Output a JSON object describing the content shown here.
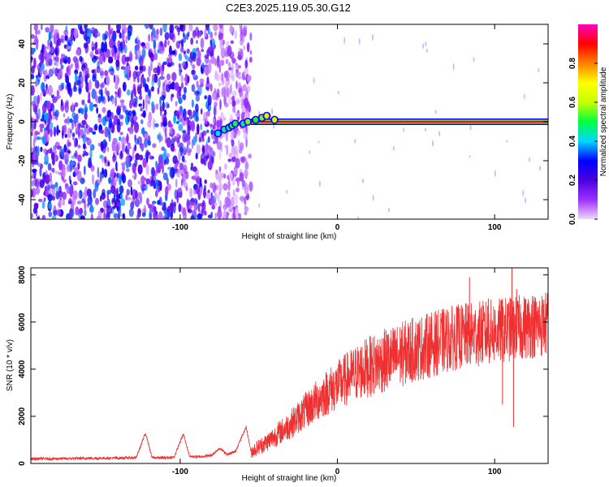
{
  "figure_title": "C2E3.2025.119.05.30.G12",
  "chart_data": [
    {
      "type": "heatmap",
      "panel": "top",
      "xlabel": "Height of straight line (km)",
      "ylabel": "Frequency (Hz)",
      "xlim": [
        -195,
        134
      ],
      "ylim": [
        -50,
        50
      ],
      "xticks": [
        -100,
        0,
        100
      ],
      "yticks": [
        -40,
        -20,
        0,
        20,
        40
      ],
      "x_tick_labels": [
        "-100",
        "0",
        "100"
      ],
      "y_tick_labels": [
        "-40",
        "-20",
        "0",
        "20",
        "40"
      ],
      "colorbar": {
        "label": "Normalized spectral amplitude",
        "range": [
          0,
          1
        ],
        "ticks": [
          0,
          0.2,
          0.4,
          0.6,
          0.8
        ],
        "tick_labels": [
          "0.0",
          "0.2",
          "0.4",
          "0.6",
          "0.8"
        ],
        "colormap": [
          "#f0d8ff",
          "#9b30ff",
          "#4b00e0",
          "#0000ff",
          "#00d8ff",
          "#00ff40",
          "#c8ff00",
          "#ffff00",
          "#ff8000",
          "#ff0000",
          "#ff00c0"
        ]
      },
      "noise_region": {
        "x_from": -195,
        "x_to": -55
      },
      "signal_line": {
        "frequency": 0,
        "x_from": -55,
        "x_to": 134,
        "amplitude": 0.9
      },
      "transition_points": [
        {
          "x": -76,
          "y": -6,
          "amplitude": 0.4
        },
        {
          "x": -72,
          "y": -4,
          "amplitude": 0.45
        },
        {
          "x": -69,
          "y": -3,
          "amplitude": 0.45
        },
        {
          "x": -67,
          "y": -2,
          "amplitude": 0.5
        },
        {
          "x": -65,
          "y": -1,
          "amplitude": 0.5
        },
        {
          "x": -60,
          "y": -1,
          "amplitude": 0.45
        },
        {
          "x": -57,
          "y": 0,
          "amplitude": 0.55
        },
        {
          "x": -52,
          "y": 1,
          "amplitude": 0.5
        },
        {
          "x": -48,
          "y": 2,
          "amplitude": 0.55
        },
        {
          "x": -45,
          "y": 3,
          "amplitude": 0.6
        },
        {
          "x": -40,
          "y": 1,
          "amplitude": 0.6
        }
      ]
    },
    {
      "type": "line",
      "panel": "bottom",
      "xlabel": "Height of straight line (km)",
      "ylabel": "SNR (10 * v/v)",
      "xlim": [
        -195,
        134
      ],
      "ylim": [
        0,
        8300
      ],
      "xticks": [
        -100,
        0,
        100
      ],
      "yticks": [
        0,
        2000,
        4000,
        6000,
        8000
      ],
      "x_tick_labels": [
        "-100",
        "0",
        "100"
      ],
      "y_tick_labels": [
        "0",
        "2000",
        "4000",
        "6000",
        "8000"
      ],
      "series": [
        {
          "color": "#ee3030",
          "x": [
            -195,
            -180,
            -160,
            -140,
            -128,
            -122,
            -118,
            -112,
            -104,
            -98,
            -94,
            -88,
            -80,
            -75,
            -70,
            -65,
            -58,
            -55,
            -50,
            -45,
            -40,
            -35,
            -30,
            -25,
            -20,
            -15,
            -10,
            -5,
            0,
            5,
            10,
            15,
            20,
            25,
            30,
            35,
            40,
            45,
            50,
            55,
            60,
            65,
            70,
            75,
            80,
            85,
            90,
            95,
            100,
            105,
            110,
            115,
            120,
            125,
            130,
            134
          ],
          "y": [
            200,
            200,
            220,
            230,
            250,
            1300,
            250,
            240,
            260,
            1250,
            300,
            280,
            350,
            650,
            380,
            500,
            1550,
            500,
            700,
            900,
            1150,
            1400,
            1650,
            1950,
            2250,
            2550,
            2850,
            3100,
            3300,
            3550,
            3750,
            3950,
            4100,
            4250,
            4350,
            4450,
            4600,
            4750,
            4850,
            4950,
            5050,
            5150,
            5250,
            5350,
            5400,
            5450,
            5500,
            5550,
            5600,
            5650,
            5700,
            5750,
            5800,
            5850,
            5900,
            5950
          ],
          "spikes": [
            {
              "x": 84,
              "y": 7900
            },
            {
              "x": 96,
              "y": 7000
            },
            {
              "x": 104,
              "y": 6900
            },
            {
              "x": 111,
              "y": 8300
            },
            {
              "x": 114,
              "y": 7400
            },
            {
              "x": 124,
              "y": 7100
            },
            {
              "x": 105,
              "y": 2500
            },
            {
              "x": 112,
              "y": 1550
            }
          ]
        }
      ]
    }
  ]
}
